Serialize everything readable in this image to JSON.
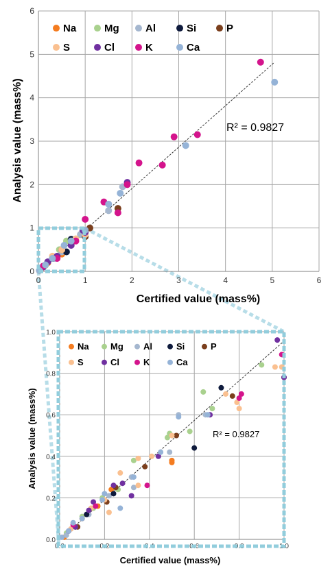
{
  "chart_data": [
    {
      "type": "scatter",
      "xlabel": "Certified value (mass%)",
      "ylabel": "Analysis value (mass%)",
      "xlim": [
        0,
        6
      ],
      "ylim": [
        0,
        6
      ],
      "x_ticks": [
        "0",
        "1",
        "2",
        "3",
        "4",
        "5",
        "6"
      ],
      "y_ticks": [
        "0",
        "1",
        "2",
        "3",
        "4",
        "5",
        "6"
      ],
      "grid": true,
      "legend_position": "top-left",
      "r2_label": "R² = 0.9827",
      "trendline": {
        "x": [
          0,
          5.05
        ],
        "y": [
          0,
          4.82
        ]
      },
      "series": [
        {
          "name": "Na",
          "color": "#f47c20",
          "points": [
            [
              0.02,
              0.02
            ],
            [
              0.1,
              0.11
            ],
            [
              0.2,
              0.2
            ],
            [
              0.3,
              0.3
            ],
            [
              0.5,
              0.4
            ],
            [
              0.7,
              0.65
            ],
            [
              0.9,
              0.85
            ]
          ]
        },
        {
          "name": "Mg",
          "color": "#a9d18e",
          "points": [
            [
              0.05,
              0.06
            ],
            [
              0.15,
              0.14
            ],
            [
              0.3,
              0.3
            ],
            [
              0.45,
              0.5
            ],
            [
              0.6,
              0.7
            ],
            [
              0.9,
              0.85
            ],
            [
              1.0,
              0.95
            ]
          ]
        },
        {
          "name": "Al",
          "color": "#a5b7cf",
          "points": [
            [
              0.05,
              0.04
            ],
            [
              0.2,
              0.22
            ],
            [
              0.35,
              0.3
            ],
            [
              0.5,
              0.45
            ],
            [
              0.9,
              0.85
            ],
            [
              1.1,
              1.0
            ],
            [
              1.5,
              1.4
            ],
            [
              1.8,
              1.95
            ]
          ]
        },
        {
          "name": "Si",
          "color": "#0f1b3d",
          "points": [
            [
              0.05,
              0.05
            ],
            [
              0.3,
              0.3
            ],
            [
              0.6,
              0.45
            ],
            [
              0.7,
              0.74
            ],
            [
              1.0,
              0.9
            ]
          ]
        },
        {
          "name": "P",
          "color": "#7b3f1d",
          "points": [
            [
              0.1,
              0.1
            ],
            [
              0.3,
              0.3
            ],
            [
              0.5,
              0.5
            ],
            [
              0.75,
              0.7
            ],
            [
              1.0,
              0.8
            ],
            [
              1.1,
              1.0
            ],
            [
              1.7,
              1.45
            ]
          ]
        },
        {
          "name": "S",
          "color": "#fac090",
          "points": [
            [
              0.05,
              0.05
            ],
            [
              0.3,
              0.35
            ],
            [
              0.5,
              0.5
            ],
            [
              0.8,
              0.75
            ],
            [
              1.0,
              0.85
            ]
          ]
        },
        {
          "name": "Cl",
          "color": "#7030a0",
          "points": [
            [
              0.1,
              0.1
            ],
            [
              0.2,
              0.22
            ],
            [
              0.4,
              0.35
            ],
            [
              0.7,
              0.6
            ],
            [
              0.95,
              0.95
            ],
            [
              1.0,
              0.9
            ],
            [
              1.9,
              2.05
            ]
          ]
        },
        {
          "name": "K",
          "color": "#d4148c",
          "points": [
            [
              0.1,
              0.12
            ],
            [
              0.4,
              0.3
            ],
            [
              0.8,
              0.7
            ],
            [
              1.0,
              1.2
            ],
            [
              1.4,
              1.6
            ],
            [
              1.7,
              1.35
            ],
            [
              1.9,
              2.0
            ],
            [
              2.15,
              2.5
            ],
            [
              2.65,
              2.45
            ],
            [
              2.9,
              3.1
            ],
            [
              3.4,
              3.15
            ],
            [
              4.75,
              4.82
            ]
          ]
        },
        {
          "name": "Ca",
          "color": "#95b3d7",
          "points": [
            [
              0.02,
              0.02
            ],
            [
              0.15,
              0.15
            ],
            [
              0.3,
              0.3
            ],
            [
              0.55,
              0.6
            ],
            [
              0.7,
              0.7
            ],
            [
              1.0,
              0.95
            ],
            [
              1.5,
              1.55
            ],
            [
              1.75,
              1.8
            ],
            [
              3.15,
              2.9
            ],
            [
              5.05,
              4.36
            ]
          ]
        }
      ]
    },
    {
      "type": "scatter",
      "xlabel": "Certified value (mass%)",
      "ylabel": "Analysis value (mass%)",
      "xlim": [
        0,
        1
      ],
      "ylim": [
        0,
        1
      ],
      "x_ticks": [
        "0.0",
        "0.2",
        "0.4",
        "0.6",
        "0.8",
        "1.0"
      ],
      "y_ticks": [
        "0.0",
        "0.2",
        "0.4",
        "0.6",
        "0.8",
        "1.0"
      ],
      "grid": true,
      "legend_position": "top-left",
      "r2_label": "R² = 0.9827",
      "trendline": {
        "x": [
          0,
          1.0
        ],
        "y": [
          0,
          0.955
        ]
      },
      "series": [
        {
          "name": "Na",
          "color": "#f47c20",
          "points": [
            [
              0.02,
              0.01
            ],
            [
              0.1,
              0.1
            ],
            [
              0.17,
              0.16
            ],
            [
              0.23,
              0.24
            ],
            [
              0.5,
              0.38
            ],
            [
              0.5,
              0.37
            ]
          ]
        },
        {
          "name": "Mg",
          "color": "#a9d18e",
          "points": [
            [
              0.03,
              0.03
            ],
            [
              0.1,
              0.11
            ],
            [
              0.15,
              0.15
            ],
            [
              0.19,
              0.2
            ],
            [
              0.26,
              0.24
            ],
            [
              0.33,
              0.38
            ],
            [
              0.48,
              0.49
            ],
            [
              0.49,
              0.51
            ],
            [
              0.58,
              0.52
            ],
            [
              0.64,
              0.71
            ],
            [
              0.68,
              0.63
            ],
            [
              0.9,
              0.84
            ]
          ]
        },
        {
          "name": "Al",
          "color": "#a5b7cf",
          "points": [
            [
              0.03,
              0.02
            ],
            [
              0.05,
              0.05
            ],
            [
              0.13,
              0.12
            ],
            [
              0.22,
              0.21
            ],
            [
              0.33,
              0.25
            ],
            [
              0.32,
              0.3
            ],
            [
              0.49,
              0.42
            ],
            [
              0.53,
              0.6
            ],
            [
              0.65,
              0.6
            ],
            [
              1.0,
              0.78
            ]
          ]
        },
        {
          "name": "Si",
          "color": "#0f1b3d",
          "points": [
            [
              0.07,
              0.06
            ],
            [
              0.12,
              0.12
            ],
            [
              0.24,
              0.22
            ],
            [
              0.6,
              0.44
            ],
            [
              0.72,
              0.73
            ]
          ]
        },
        {
          "name": "P",
          "color": "#7b3f1d",
          "points": [
            [
              0.08,
              0.06
            ],
            [
              0.21,
              0.18
            ],
            [
              0.25,
              0.25
            ],
            [
              0.38,
              0.35
            ],
            [
              0.52,
              0.5
            ],
            [
              0.77,
              0.69
            ],
            [
              1.0,
              0.78
            ]
          ]
        },
        {
          "name": "S",
          "color": "#fac090",
          "points": [
            [
              0.05,
              0.05
            ],
            [
              0.14,
              0.15
            ],
            [
              0.2,
              0.19
            ],
            [
              0.22,
              0.13
            ],
            [
              0.27,
              0.32
            ],
            [
              0.35,
              0.39
            ],
            [
              0.35,
              0.26
            ],
            [
              0.41,
              0.4
            ],
            [
              0.5,
              0.5
            ],
            [
              0.74,
              0.7
            ],
            [
              0.79,
              0.66
            ],
            [
              0.8,
              0.63
            ],
            [
              0.96,
              0.83
            ],
            [
              0.99,
              0.83
            ]
          ]
        },
        {
          "name": "Cl",
          "color": "#7030a0",
          "points": [
            [
              0.04,
              0.04
            ],
            [
              0.07,
              0.06
            ],
            [
              0.13,
              0.14
            ],
            [
              0.15,
              0.18
            ],
            [
              0.24,
              0.26
            ],
            [
              0.28,
              0.27
            ],
            [
              0.32,
              0.21
            ],
            [
              0.44,
              0.4
            ],
            [
              0.67,
              0.6
            ],
            [
              0.97,
              0.96
            ],
            [
              1.0,
              0.78
            ]
          ]
        },
        {
          "name": "K",
          "color": "#d4148c",
          "points": [
            [
              0.06,
              0.07
            ],
            [
              0.16,
              0.16
            ],
            [
              0.39,
              0.26
            ],
            [
              0.8,
              0.68
            ],
            [
              0.81,
              0.7
            ],
            [
              0.99,
              0.89
            ]
          ]
        },
        {
          "name": "Ca",
          "color": "#95b3d7",
          "points": [
            [
              0.01,
              0.01
            ],
            [
              0.04,
              0.04
            ],
            [
              0.06,
              0.08
            ],
            [
              0.1,
              0.1
            ],
            [
              0.19,
              0.19
            ],
            [
              0.2,
              0.22
            ],
            [
              0.27,
              0.15
            ],
            [
              0.33,
              0.3
            ],
            [
              0.45,
              0.42
            ],
            [
              0.53,
              0.59
            ],
            [
              0.66,
              0.6
            ]
          ]
        }
      ]
    }
  ]
}
